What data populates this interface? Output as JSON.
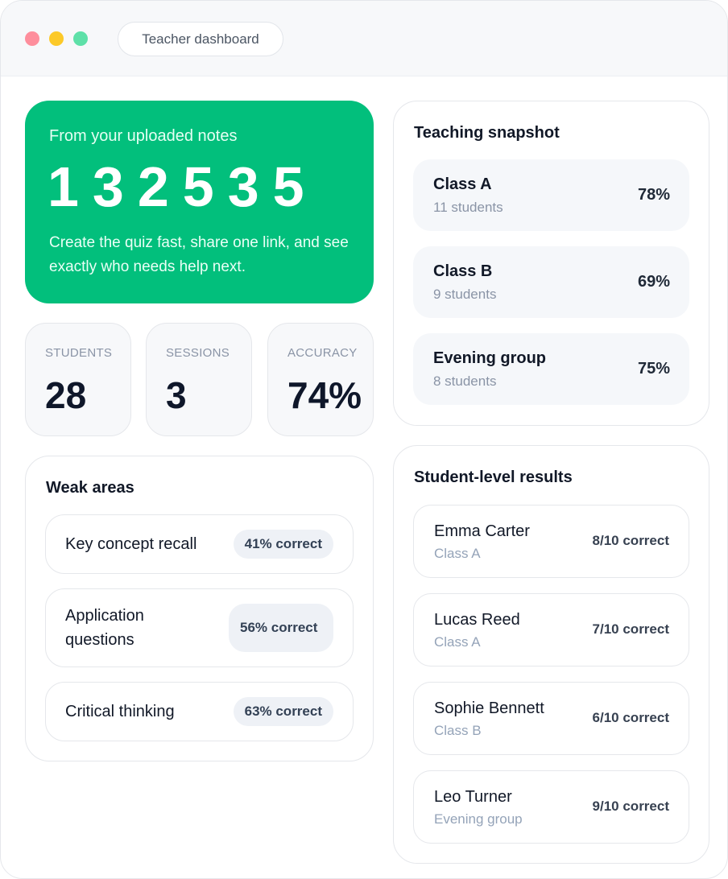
{
  "window": {
    "title": "Teacher dashboard"
  },
  "hero": {
    "eyebrow": "From your uploaded notes",
    "code": "132535",
    "description": "Create the quiz fast, share one link, and see exactly who needs help next."
  },
  "stats": [
    {
      "label": "STUDENTS",
      "value": 28
    },
    {
      "label": "SESSIONS",
      "value": 3
    },
    {
      "label": "ACCURACY",
      "value": "74%"
    }
  ],
  "weak_areas": {
    "title": "Weak areas",
    "items": [
      {
        "label": "Key concept recall",
        "score": "41% correct"
      },
      {
        "label": "Application questions",
        "score": "56% correct"
      },
      {
        "label": "Critical thinking",
        "score": "63% correct"
      }
    ]
  },
  "snapshot": {
    "title": "Teaching snapshot",
    "classes": [
      {
        "name": "Class A",
        "students": "11 students",
        "score": "78%"
      },
      {
        "name": "Class B",
        "students": "9 students",
        "score": "69%"
      },
      {
        "name": "Evening group",
        "students": "8 students",
        "score": "75%"
      }
    ]
  },
  "results": {
    "title": "Student-level results",
    "students": [
      {
        "name": "Emma Carter",
        "class": "Class A",
        "score": "8/10 correct"
      },
      {
        "name": "Lucas Reed",
        "class": "Class A",
        "score": "7/10 correct"
      },
      {
        "name": "Sophie Bennett",
        "class": "Class B",
        "score": "6/10 correct"
      },
      {
        "name": "Leo Turner",
        "class": "Evening group",
        "score": "9/10 correct"
      }
    ]
  }
}
